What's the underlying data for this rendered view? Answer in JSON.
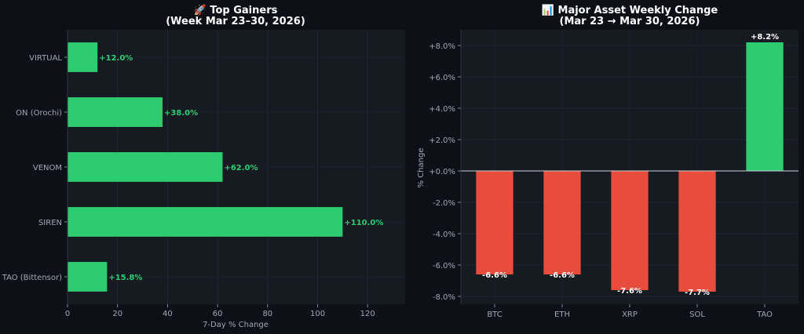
{
  "colors": {
    "background": "#0d1117",
    "panel": "#161b22",
    "positive": "#2ecc71",
    "negative": "#e74c3c",
    "text": "#ffffff",
    "muted": "#a0a7b4"
  },
  "chart_data": [
    {
      "type": "bar",
      "orientation": "horizontal",
      "title_line1": "🚀 Top Gainers",
      "title_line2": "(Week Mar 23–30, 2026)",
      "xlabel": "7-Day % Change",
      "ylabel": "",
      "categories": [
        "VIRTUAL",
        "ON (Orochi)",
        "VENOM",
        "SIREN",
        "TAO (Bittensor)"
      ],
      "values": [
        12.0,
        38.0,
        62.0,
        110.0,
        15.8
      ],
      "data_labels": [
        "+12.0%",
        "+38.0%",
        "+62.0%",
        "+110.0%",
        "+15.8%"
      ],
      "xlim": [
        0,
        135
      ],
      "xticks": [
        0,
        20,
        40,
        60,
        80,
        100,
        120
      ],
      "xtick_labels": [
        "0",
        "20",
        "40",
        "60",
        "80",
        "100",
        "120"
      ],
      "grid": true
    },
    {
      "type": "bar",
      "orientation": "vertical",
      "title_line1": "📊 Major Asset Weekly Change",
      "title_line2": "(Mar 23 → Mar 30, 2026)",
      "xlabel": "",
      "ylabel": "% Change",
      "categories": [
        "BTC",
        "ETH",
        "XRP",
        "SOL",
        "TAO"
      ],
      "values": [
        -6.6,
        -6.6,
        -7.6,
        -7.7,
        8.2
      ],
      "data_labels": [
        "-6.6%",
        "-6.6%",
        "-7.6%",
        "-7.7%",
        "+8.2%"
      ],
      "ylim": [
        -8.5,
        9.0
      ],
      "yticks": [
        -8,
        -6,
        -4,
        -2,
        0,
        2,
        4,
        6,
        8
      ],
      "ytick_labels": [
        "-8.0%",
        "-6.0%",
        "-4.0%",
        "-2.0%",
        "+0.0%",
        "+2.0%",
        "+4.0%",
        "+6.0%",
        "+8.0%"
      ],
      "grid": true
    }
  ]
}
